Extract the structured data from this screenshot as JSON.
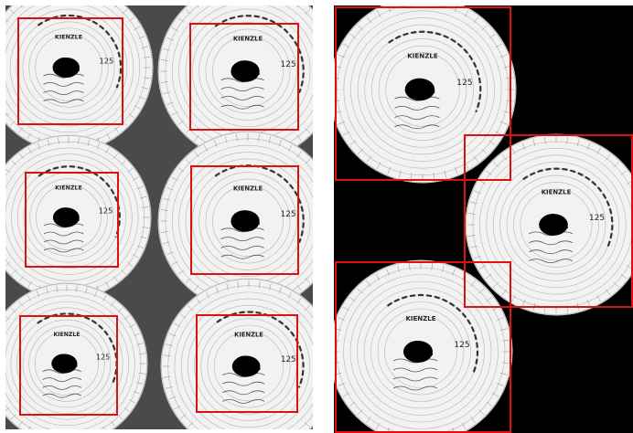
{
  "colors": {
    "highlight_box": "#e01010",
    "left_background": "#4a4a4a",
    "right_background": "#000000",
    "disc_paper": "#f2f2f2",
    "disc_ring": "#9a9a9a",
    "center_hole": "#000000"
  },
  "discs": [
    {
      "brand": "KIENZLE",
      "number": "125"
    },
    {
      "brand": "KIENZLE",
      "number": "125"
    },
    {
      "brand": "KIENZLE",
      "number": "125"
    },
    {
      "brand": "KIENZLE",
      "number": "125"
    },
    {
      "brand": "KIENZLE",
      "number": "125"
    },
    {
      "brand": "KIENZLE",
      "number": "125"
    },
    {
      "brand": "KIENZLE",
      "number": "125"
    },
    {
      "brand": "KIENZLE",
      "number": "125"
    },
    {
      "brand": "KIENZLE",
      "number": "125"
    }
  ]
}
